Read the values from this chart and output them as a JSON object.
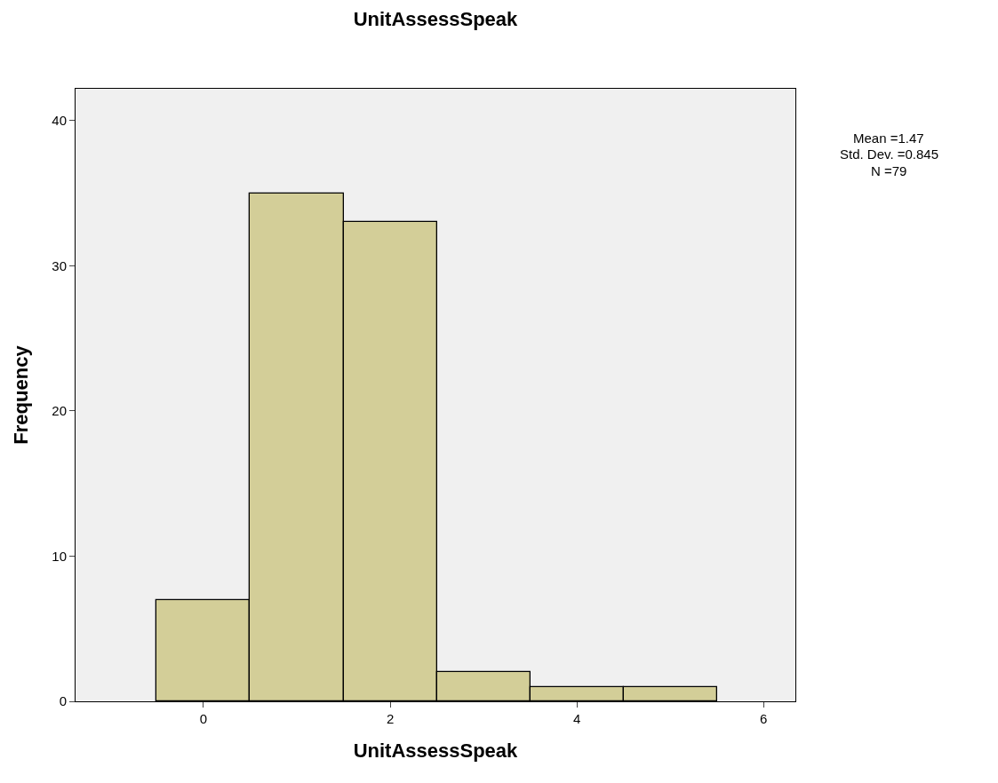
{
  "chart_data": {
    "type": "histogram",
    "title": "UnitAssessSpeak",
    "xlabel": "UnitAssessSpeak",
    "ylabel": "Frequency",
    "bins": [
      -0.5,
      0.5,
      1.5,
      2.5,
      3.5,
      4.5,
      5.5
    ],
    "values": [
      7,
      35,
      33,
      2,
      1,
      1
    ],
    "color": "#d3ce98",
    "xlim": [
      -1.37,
      6.34
    ],
    "xticks": [
      0,
      2,
      4,
      6
    ],
    "ylim": [
      0,
      42.2
    ],
    "yticks": [
      0,
      10,
      20,
      30,
      40
    ],
    "grid": false,
    "annotations": [
      "Mean =1.47",
      "Std. Dev. =0.845",
      "N =79"
    ]
  }
}
